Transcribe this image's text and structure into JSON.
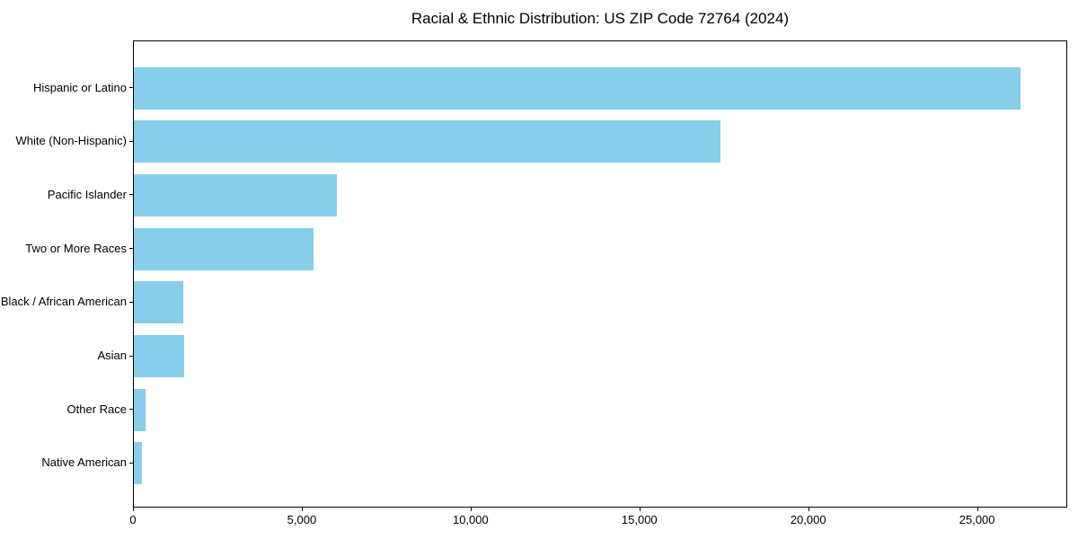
{
  "chart_data": {
    "type": "bar",
    "orientation": "horizontal",
    "title": "Racial & Ethnic Distribution: US ZIP Code 72764 (2024)",
    "xlabel": "",
    "ylabel": "",
    "grid": false,
    "legend": null,
    "categories": [
      "Hispanic or Latino",
      "White (Non-Hispanic)",
      "Pacific Islander",
      "Two or More Races",
      "Black / African American",
      "Asian",
      "Other Race",
      "Native American"
    ],
    "values": [
      26300,
      17400,
      6030,
      5330,
      1470,
      1480,
      350,
      250
    ],
    "xlim": [
      0,
      27670
    ],
    "x_ticks": [
      0,
      5000,
      10000,
      15000,
      20000,
      25000
    ],
    "x_tick_labels": [
      "0",
      "5,000",
      "10,000",
      "15,000",
      "20,000",
      "25,000"
    ],
    "colors": {
      "bar": "#87CEEB",
      "spine": "#000000",
      "text": "#000000",
      "background": "#ffffff"
    }
  }
}
